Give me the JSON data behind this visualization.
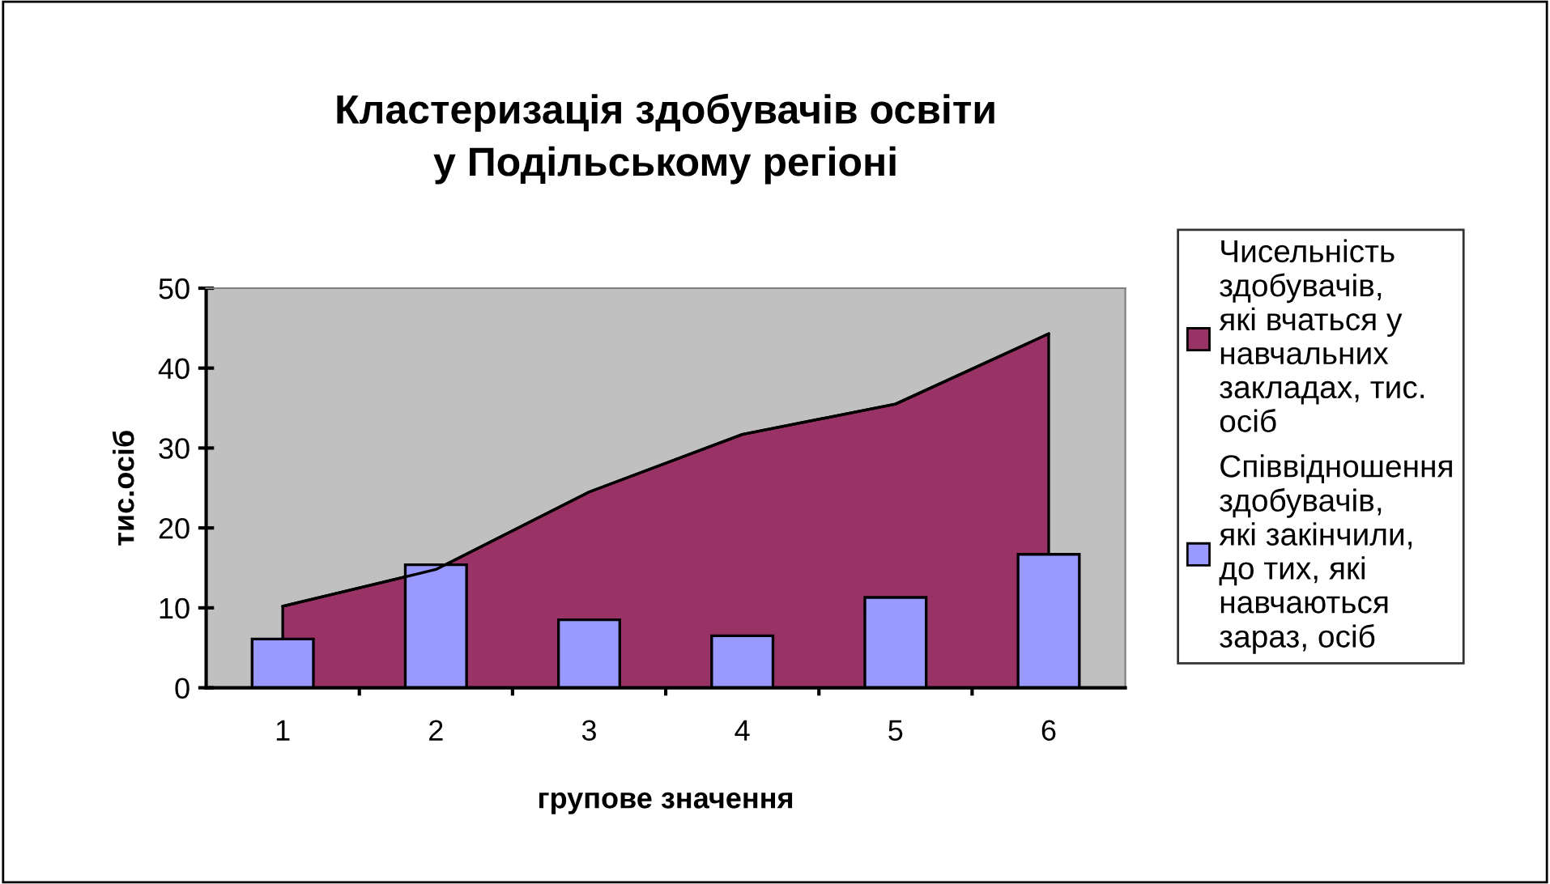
{
  "chart_data": {
    "type": "bar",
    "title": "Кластеризація здобувачів освіти\nу Подільському регіоні",
    "xlabel": "групове значення",
    "ylabel": "тис.осіб",
    "categories": [
      "1",
      "2",
      "3",
      "4",
      "5",
      "6"
    ],
    "series": [
      {
        "name": "Чисельність здобувачів, які вчаться у навчальних закладах, тис. осіб",
        "type": "area",
        "color": "#993366",
        "values": [
          10.2,
          14.8,
          24.5,
          31.7,
          35.5,
          44.3
        ]
      },
      {
        "name": "Співвідношення здобувачів, які закінчили, до тих, які навчаються зараз, осіб",
        "color": "#9999ff",
        "values": [
          6.1,
          15.4,
          8.5,
          6.5,
          11.3,
          16.7
        ]
      }
    ],
    "ylim": [
      0,
      50
    ],
    "yticks": [
      0,
      10,
      20,
      30,
      40,
      50
    ],
    "grid": false,
    "legend": "right"
  }
}
